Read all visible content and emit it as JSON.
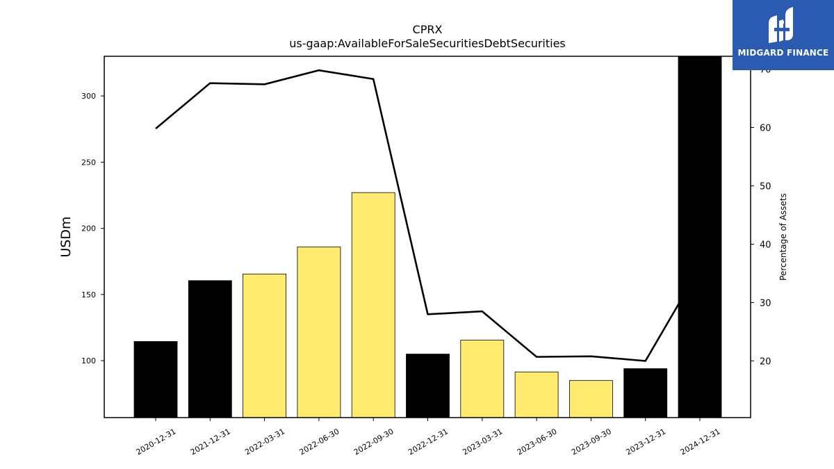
{
  "brand": {
    "name": "MIDGARD FINANCE",
    "bg_color": "#2a5bb0"
  },
  "chart_data": {
    "type": "bar",
    "title": "CPRX",
    "subtitle": "us-gaap:AvailableForSaleSecuritiesDebtSecurities",
    "ylabel": "USDm",
    "y2label": "Percentage of Assets",
    "ylim": [
      57,
      330
    ],
    "y2lim": [
      10.3,
      72.2
    ],
    "yticks": [
      100,
      150,
      200,
      250,
      300
    ],
    "y2ticks": [
      20,
      30,
      40,
      50,
      60,
      70
    ],
    "categories": [
      "2020-12-31",
      "2021-12-31",
      "2022-03-31",
      "2022-06-30",
      "2022-09-30",
      "2022-12-31",
      "2023-03-31",
      "2023-06-30",
      "2023-09-30",
      "2023-12-31",
      "2024-12-31"
    ],
    "series": [
      {
        "type": "bar",
        "values": [
          114.5,
          160.5,
          165.5,
          186.0,
          227.0,
          105.0,
          115.5,
          91.5,
          85.0,
          94.0,
          330.0
        ],
        "colors": [
          "#000000",
          "#000000",
          "#ffeb70",
          "#ffeb70",
          "#ffeb70",
          "#000000",
          "#ffeb70",
          "#ffeb70",
          "#ffeb70",
          "#000000",
          "#000000"
        ]
      },
      {
        "type": "line",
        "axis": "right",
        "color": "#000000",
        "values": [
          59.8,
          67.6,
          67.4,
          69.8,
          68.3,
          28.0,
          28.5,
          20.7,
          20.8,
          20.0,
          36.0
        ]
      }
    ]
  }
}
